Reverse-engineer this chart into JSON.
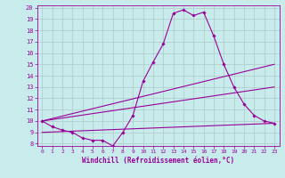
{
  "title": "",
  "xlabel": "Windchill (Refroidissement éolien,°C)",
  "ylabel": "",
  "xlim": [
    -0.5,
    23.5
  ],
  "ylim": [
    7.8,
    20.2
  ],
  "yticks": [
    8,
    9,
    10,
    11,
    12,
    13,
    14,
    15,
    16,
    17,
    18,
    19,
    20
  ],
  "xticks": [
    0,
    1,
    2,
    3,
    4,
    5,
    6,
    7,
    8,
    9,
    10,
    11,
    12,
    13,
    14,
    15,
    16,
    17,
    18,
    19,
    20,
    21,
    22,
    23
  ],
  "bg_color": "#c8ecec",
  "line_color": "#990099",
  "grid_color": "#b0c8c8",
  "lines": [
    {
      "x": [
        0,
        1,
        2,
        3,
        4,
        5,
        6,
        7,
        8,
        9,
        10,
        11,
        12,
        13,
        14,
        15,
        16,
        17,
        18,
        19,
        20,
        21,
        22,
        23
      ],
      "y": [
        10.0,
        9.5,
        9.2,
        9.0,
        8.5,
        8.3,
        8.3,
        7.8,
        9.0,
        10.5,
        13.5,
        15.2,
        16.8,
        19.5,
        19.8,
        19.3,
        19.6,
        17.5,
        15.0,
        13.0,
        11.5,
        10.5,
        10.0,
        9.8
      ],
      "marker": true
    },
    {
      "x": [
        0,
        23
      ],
      "y": [
        10.0,
        15.0
      ],
      "marker": false
    },
    {
      "x": [
        0,
        23
      ],
      "y": [
        10.0,
        13.0
      ],
      "marker": false
    },
    {
      "x": [
        0,
        23
      ],
      "y": [
        9.0,
        9.8
      ],
      "marker": false
    }
  ]
}
